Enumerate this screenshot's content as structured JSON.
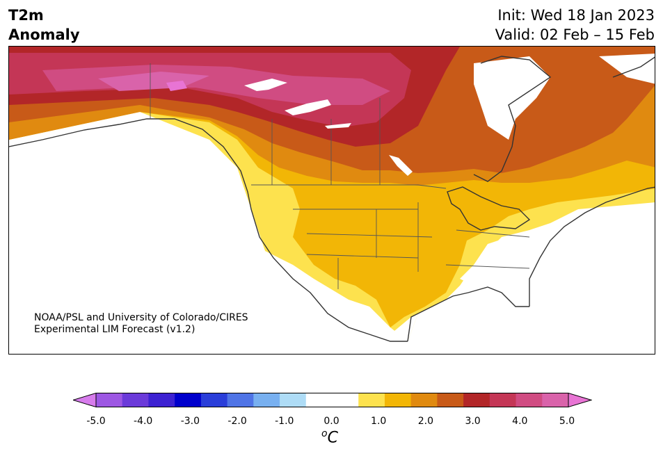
{
  "header": {
    "title_line1": "T2m",
    "title_line2": "Anomaly",
    "init": "Init: Wed 18 Jan 2023",
    "valid": "Valid: 02 Feb – 15 Feb"
  },
  "credit": {
    "line1": "NOAA/PSL and University of Colorado/CIRES",
    "line2": "Experimental LIM Forecast (v1.2)"
  },
  "colorbar": {
    "ticks": [
      "-5.0",
      "-4.0",
      "-3.0",
      "-2.0",
      "-1.0",
      "0.0",
      "1.0",
      "2.0",
      "3.0",
      "4.0",
      "5.0"
    ],
    "unit_base": "C",
    "unit_sup": "o",
    "colors": [
      "#d77cec",
      "#9d57e3",
      "#6b3ad9",
      "#3d22d2",
      "#0000cc",
      "#2a3ed9",
      "#4f74e6",
      "#78b0f0",
      "#aedcf6",
      "#ffffff",
      "#ffffff",
      "#fde24e",
      "#f2b606",
      "#e08a10",
      "#c85a18",
      "#b22628",
      "#c43656",
      "#d04c82",
      "#d963aa",
      "#e874d4"
    ]
  }
}
